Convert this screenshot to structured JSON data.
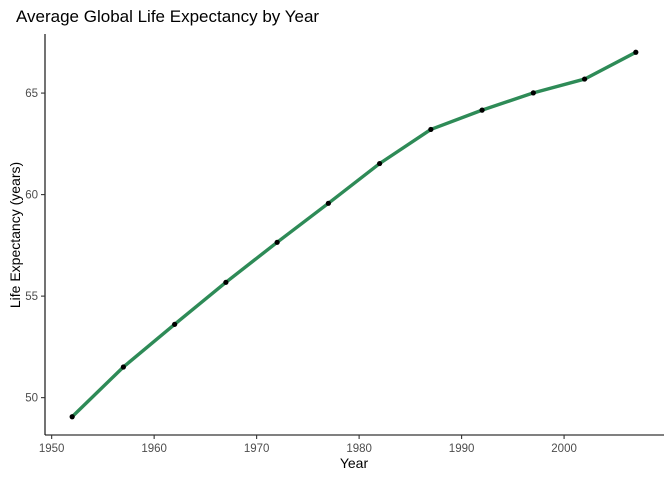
{
  "chart_data": {
    "type": "line",
    "title": "Average Global Life Expectancy by Year",
    "xlabel": "Year",
    "ylabel": "Life Expectancy (years)",
    "x": [
      1952,
      1957,
      1962,
      1967,
      1972,
      1977,
      1982,
      1987,
      1992,
      1997,
      2002,
      2007
    ],
    "series": [
      {
        "values": [
          49.06,
          51.51,
          53.61,
          55.68,
          57.65,
          59.57,
          61.53,
          63.21,
          64.16,
          65.01,
          65.69,
          67.01
        ],
        "color": "#2e8b57",
        "point_color": "#000000"
      }
    ],
    "xticks": [
      1950,
      1960,
      1970,
      1980,
      1990,
      2000
    ],
    "xtick_labels": [
      "1950",
      "1960",
      "1970",
      "1980",
      "1990",
      "2000"
    ],
    "yticks": [
      50,
      55,
      60,
      65
    ],
    "ytick_labels": [
      "50",
      "55",
      "60",
      "65"
    ],
    "xlim": [
      1949.35,
      2009.75
    ],
    "ylim": [
      48.16,
      67.91
    ],
    "grid": false,
    "legend": "none"
  }
}
